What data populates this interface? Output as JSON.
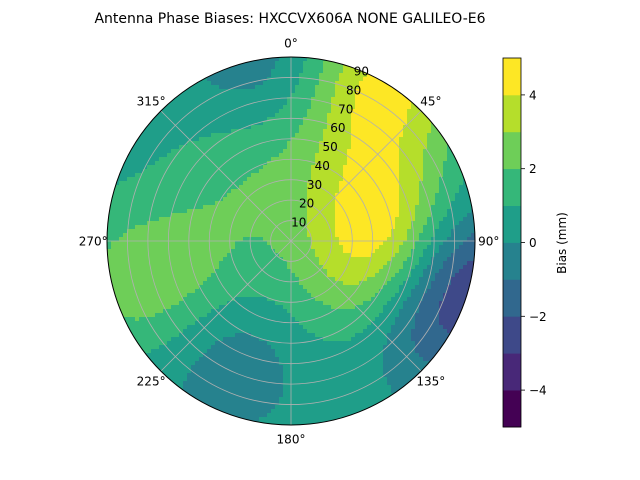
{
  "title": "Antenna Phase Biases: HXCCVX606A      NONE GALILEO-E6",
  "chart_data": {
    "type": "heatmap",
    "projection": "polar",
    "title": "Antenna Phase Biases: HXCCVX606A      NONE GALILEO-E6",
    "angle_ticks": [
      {
        "deg": 0,
        "label": "0°"
      },
      {
        "deg": 45,
        "label": "45°"
      },
      {
        "deg": 90,
        "label": "90°"
      },
      {
        "deg": 135,
        "label": "135°"
      },
      {
        "deg": 180,
        "label": "180°"
      },
      {
        "deg": 225,
        "label": "225°"
      },
      {
        "deg": 270,
        "label": "270°"
      },
      {
        "deg": 315,
        "label": "315°"
      }
    ],
    "radial_ticks": [
      10,
      20,
      30,
      40,
      50,
      60,
      70,
      80,
      90
    ],
    "radial_range": [
      0,
      90
    ],
    "grid": true,
    "colorbar": {
      "label": "Bias (mm)",
      "range": [
        -5,
        5
      ],
      "levels": [
        -5,
        -4,
        -3,
        -2,
        -1,
        0,
        1,
        2,
        3,
        4,
        5
      ],
      "ticks": [
        -4,
        -2,
        0,
        2,
        4
      ],
      "tick_labels": [
        "−4",
        "−2",
        "0",
        "2",
        "4"
      ],
      "colors": [
        "#440154",
        "#482878",
        "#3e4989",
        "#31688e",
        "#26828e",
        "#1f9e89",
        "#35b779",
        "#6ece58",
        "#b5de2b",
        "#fde725"
      ]
    },
    "field_note_not_displayed": null,
    "blobs": [
      {
        "az": 90,
        "el": 48,
        "value": 1.6
      },
      {
        "az": 45,
        "el": 50,
        "value": 1.5
      },
      {
        "az": 130,
        "el": 45,
        "value": 1.5
      },
      {
        "az": 92,
        "el": 47,
        "value": 2.2
      },
      {
        "az": 330,
        "el": 42,
        "value": 1.2
      },
      {
        "az": 250,
        "el": 45,
        "value": 1.1
      },
      {
        "az": 255,
        "el": 78,
        "value": 1.8
      },
      {
        "az": 120,
        "el": 70,
        "value": -2.4
      },
      {
        "az": 100,
        "el": 88,
        "value": -3.0
      },
      {
        "az": 210,
        "el": 62,
        "value": -1.4
      },
      {
        "az": 350,
        "el": 85,
        "value": -1.3
      },
      {
        "az": 30,
        "el": 90,
        "value": 3.5
      }
    ]
  }
}
